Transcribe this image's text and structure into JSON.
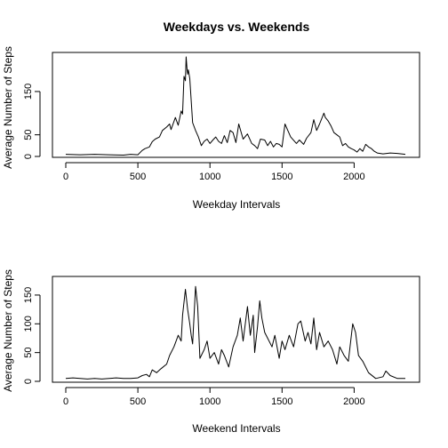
{
  "chart_data": [
    {
      "type": "line",
      "title": "Weekdays vs. Weekends",
      "xlabel": "Weekday Intervals",
      "ylabel": "Average Number of Steps",
      "xlim": [
        0,
        2355
      ],
      "ylim": [
        0,
        230
      ],
      "xticks": [
        0,
        500,
        1000,
        1500,
        2000
      ],
      "yticks": [
        0,
        50,
        150
      ],
      "line_color": "#000000",
      "series": [
        {
          "x": [
            0,
            100,
            200,
            300,
            400,
            450,
            500,
            530,
            550,
            580,
            600,
            620,
            650,
            670,
            700,
            720,
            730,
            760,
            780,
            800,
            810,
            820,
            830,
            835,
            840,
            845,
            850,
            860,
            880,
            900,
            920,
            940,
            960,
            980,
            1000,
            1020,
            1040,
            1060,
            1080,
            1100,
            1120,
            1140,
            1160,
            1180,
            1200,
            1230,
            1260,
            1290,
            1310,
            1330,
            1350,
            1380,
            1400,
            1420,
            1440,
            1460,
            1480,
            1500,
            1520,
            1540,
            1560,
            1600,
            1620,
            1650,
            1670,
            1700,
            1720,
            1740,
            1760,
            1790,
            1800,
            1820,
            1840,
            1860,
            1880,
            1900,
            1920,
            1940,
            1960,
            1980,
            2000,
            2020,
            2040,
            2060,
            2080,
            2100,
            2120,
            2140,
            2160,
            2200,
            2250,
            2300,
            2355
          ],
          "y": [
            5,
            4,
            5,
            4,
            3,
            5,
            4,
            14,
            18,
            22,
            34,
            40,
            45,
            60,
            68,
            75,
            62,
            90,
            72,
            105,
            98,
            185,
            175,
            230,
            205,
            190,
            200,
            180,
            78,
            60,
            45,
            25,
            35,
            40,
            30,
            38,
            45,
            35,
            30,
            48,
            32,
            60,
            55,
            32,
            75,
            40,
            52,
            30,
            25,
            18,
            40,
            38,
            25,
            35,
            22,
            30,
            28,
            22,
            75,
            60,
            45,
            30,
            38,
            28,
            42,
            55,
            85,
            60,
            75,
            100,
            90,
            82,
            70,
            55,
            50,
            45,
            25,
            30,
            22,
            18,
            15,
            10,
            18,
            12,
            28,
            22,
            18,
            12,
            8,
            6,
            8,
            7,
            5
          ]
        }
      ]
    },
    {
      "type": "line",
      "title": "",
      "xlabel": "Weekend Intervals",
      "ylabel": "Average Number of Steps",
      "xlim": [
        0,
        2355
      ],
      "ylim": [
        0,
        170
      ],
      "xticks": [
        0,
        500,
        1000,
        1500,
        2000
      ],
      "yticks": [
        0,
        50,
        100,
        150
      ],
      "line_color": "#000000",
      "series": [
        {
          "x": [
            0,
            50,
            100,
            150,
            200,
            250,
            300,
            350,
            400,
            450,
            500,
            530,
            560,
            580,
            600,
            630,
            660,
            700,
            720,
            750,
            780,
            800,
            810,
            830,
            845,
            860,
            870,
            880,
            900,
            915,
            930,
            960,
            980,
            1000,
            1030,
            1060,
            1080,
            1100,
            1130,
            1160,
            1190,
            1210,
            1230,
            1260,
            1280,
            1300,
            1310,
            1330,
            1345,
            1360,
            1380,
            1400,
            1430,
            1450,
            1480,
            1500,
            1520,
            1550,
            1580,
            1610,
            1630,
            1660,
            1680,
            1700,
            1720,
            1740,
            1760,
            1790,
            1820,
            1850,
            1880,
            1900,
            1930,
            1960,
            1990,
            2010,
            2030,
            2060,
            2100,
            2150,
            2200,
            2220,
            2250,
            2300,
            2355
          ],
          "y": [
            5,
            6,
            5,
            4,
            5,
            4,
            5,
            6,
            5,
            5,
            6,
            10,
            12,
            8,
            20,
            15,
            22,
            30,
            45,
            60,
            80,
            70,
            115,
            160,
            125,
            100,
            80,
            65,
            165,
            130,
            40,
            55,
            70,
            40,
            50,
            30,
            55,
            45,
            25,
            60,
            80,
            110,
            70,
            130,
            80,
            115,
            50,
            95,
            140,
            110,
            85,
            75,
            60,
            80,
            40,
            70,
            55,
            80,
            60,
            100,
            105,
            70,
            85,
            65,
            110,
            55,
            85,
            60,
            70,
            55,
            30,
            60,
            45,
            35,
            100,
            85,
            45,
            35,
            15,
            5,
            8,
            18,
            10,
            5,
            5
          ]
        }
      ]
    }
  ]
}
